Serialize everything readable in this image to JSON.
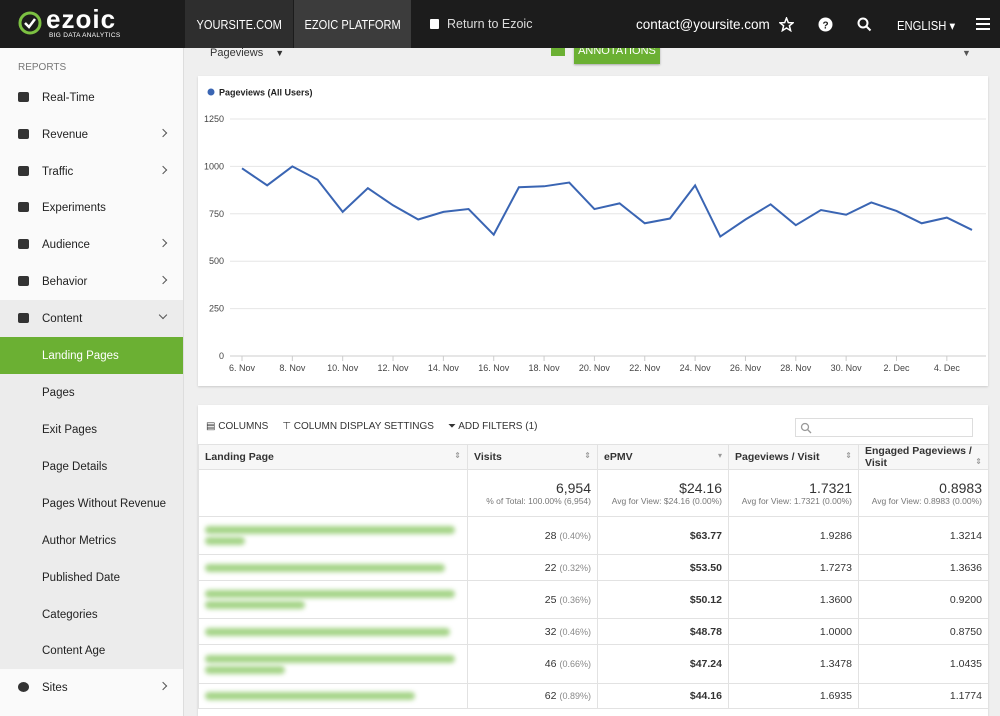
{
  "header": {
    "logo": "ezoic",
    "logo_tagline": "BIG DATA ANALYTICS",
    "tabs": [
      "YOURSITE.COM",
      "EZOIC PLATFORM"
    ],
    "return_link": "Return to Ezoic",
    "email": "contact@yoursite.com",
    "language": "ENGLISH"
  },
  "sidebar": {
    "section": "REPORTS",
    "items": [
      "Real-Time",
      "Revenue",
      "Traffic",
      "Experiments",
      "Audience",
      "Behavior",
      "Content",
      "Landing Pages",
      "Pages",
      "Exit Pages",
      "Page Details",
      "Pages Without Revenue",
      "Author Metrics",
      "Published Date",
      "Categories",
      "Content Age",
      "Sites"
    ],
    "active": "Landing Pages"
  },
  "toolbar": {
    "metric": "Pageviews",
    "annotations": "ANNOTATIONS"
  },
  "chart_data": {
    "type": "line",
    "categories": [
      "6. Nov",
      null,
      "8. Nov",
      null,
      "10. Nov",
      null,
      "12. Nov",
      null,
      "14. Nov",
      null,
      "16. Nov",
      null,
      "18. Nov",
      null,
      "20. Nov",
      null,
      "22. Nov",
      null,
      "24. Nov",
      null,
      "26. Nov",
      null,
      "28. Nov",
      null,
      "30. Nov",
      null,
      "2. Dec",
      null,
      "4. Dec",
      null
    ],
    "series": [
      {
        "name": "Pageviews (All Users)",
        "color": "#3a65b3",
        "values": [
          990,
          900,
          1000,
          930,
          760,
          885,
          795,
          720,
          760,
          775,
          640,
          890,
          895,
          915,
          775,
          805,
          700,
          725,
          900,
          630,
          720,
          800,
          690,
          770,
          745,
          810,
          765,
          700,
          730,
          665
        ]
      }
    ],
    "ylim": [
      0,
      1250
    ],
    "yticks": [
      0,
      250,
      500,
      750,
      1000,
      1250
    ],
    "grid": true,
    "legend": "top-left"
  },
  "table_tools": {
    "columns": "COLUMNS",
    "display_settings": "COLUMN DISPLAY SETTINGS",
    "filters": "ADD FILTERS (1)"
  },
  "table": {
    "columns": [
      "Landing Page",
      "Visits",
      "ePMV",
      "Pageviews / Visit",
      "Engaged Pageviews / Visit"
    ],
    "totals": [
      [
        "6,954",
        "% of Total: 100.00% (6,954)"
      ],
      [
        "$24.16",
        "Avg for View: $24.16 (0.00%)"
      ],
      [
        "1.7321",
        "Avg for View: 1.7321 (0.00%)"
      ],
      [
        "0.8983",
        "Avg for View: 0.8983 (0.00%)"
      ]
    ],
    "rows": [
      [
        "28",
        "(0.40%)",
        "$63.77",
        "1.9286",
        "1.3214"
      ],
      [
        "22",
        "(0.32%)",
        "$53.50",
        "1.7273",
        "1.3636"
      ],
      [
        "25",
        "(0.36%)",
        "$50.12",
        "1.3600",
        "0.9200"
      ],
      [
        "32",
        "(0.46%)",
        "$48.78",
        "1.0000",
        "0.8750"
      ],
      [
        "46",
        "(0.66%)",
        "$47.24",
        "1.3478",
        "1.0435"
      ],
      [
        "62",
        "(0.89%)",
        "$44.16",
        "1.6935",
        "1.1774"
      ]
    ]
  }
}
